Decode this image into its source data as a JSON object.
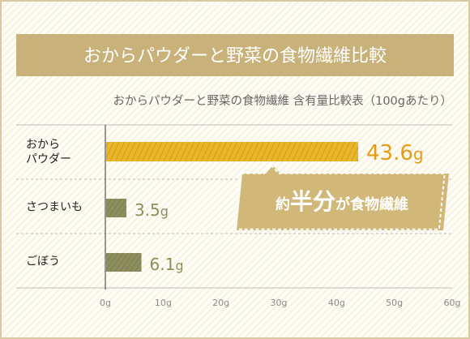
{
  "header": {
    "title": "おからパウダーと野菜の食物繊維比較"
  },
  "chart_data": {
    "type": "bar",
    "orientation": "horizontal",
    "title": "おからパウダーと野菜の食物繊維 含有量比較表（100gあたり）",
    "categories": [
      {
        "line1": "おから",
        "line2": "パウダー"
      },
      {
        "line1": "さつまいも",
        "line2": ""
      },
      {
        "line1": "ごぼう",
        "line2": ""
      }
    ],
    "values": [
      43.6,
      3.5,
      6.1
    ],
    "value_labels": [
      {
        "num": "43.6",
        "unit": "g"
      },
      {
        "num": "3.5",
        "unit": "g"
      },
      {
        "num": "6.1",
        "unit": "g"
      }
    ],
    "xlim": [
      0,
      60
    ],
    "ticks": [
      {
        "value": 0,
        "label": "0g"
      },
      {
        "value": 10,
        "label": "10g"
      },
      {
        "value": 20,
        "label": "20g"
      },
      {
        "value": 30,
        "label": "30g"
      },
      {
        "value": 40,
        "label": "40g"
      },
      {
        "value": 50,
        "label": "50g"
      },
      {
        "value": 60,
        "label": "60g"
      }
    ],
    "colors": {
      "highlight": "#e9b52a",
      "other": "#8c8f5d",
      "header": "#c8b27a",
      "callout": "#d1b879"
    },
    "grid": "horizontal-dashed"
  },
  "callout": {
    "pre": "約",
    "emph": "半分",
    "post": "が食物繊維"
  }
}
